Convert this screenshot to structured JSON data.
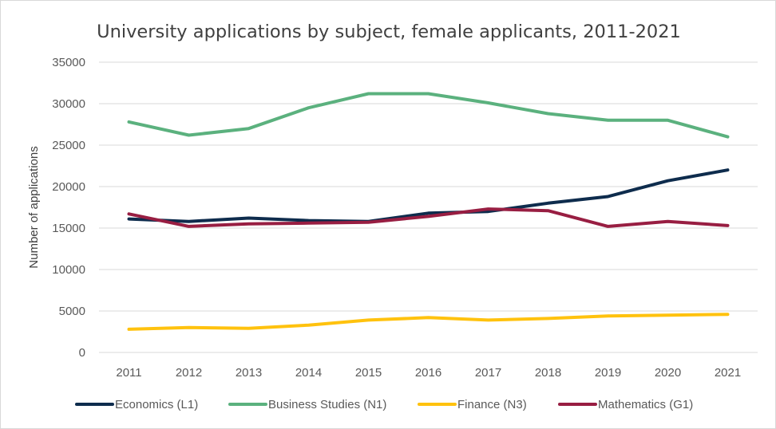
{
  "chart_data": {
    "type": "line",
    "title": "University applications by subject, female applicants, 2011-2021",
    "xlabel": "",
    "ylabel": "Number of applications",
    "ylim": [
      0,
      35000
    ],
    "yticks": [
      "0",
      "5000",
      "10000",
      "15000",
      "20000",
      "25000",
      "30000",
      "35000"
    ],
    "categories": [
      "2011",
      "2012",
      "2013",
      "2014",
      "2015",
      "2016",
      "2017",
      "2018",
      "2019",
      "2020",
      "2021"
    ],
    "grid": true,
    "legend_position": "bottom",
    "series": [
      {
        "name": "Economics (L1)",
        "color": "#0e2c4d",
        "values": [
          16100,
          15800,
          16200,
          15900,
          15800,
          16800,
          17000,
          18000,
          18800,
          20700,
          22000
        ]
      },
      {
        "name": "Business Studies (N1)",
        "color": "#5bb17e",
        "values": [
          27800,
          26200,
          27000,
          29500,
          31200,
          31200,
          30100,
          28800,
          28000,
          28000,
          26000
        ]
      },
      {
        "name": "Finance (N3)",
        "color": "#ffc20e",
        "values": [
          2800,
          3000,
          2900,
          3300,
          3900,
          4200,
          3900,
          4100,
          4400,
          4500,
          4600
        ]
      },
      {
        "name": "Mathematics (G1)",
        "color": "#981e42",
        "values": [
          16700,
          15200,
          15500,
          15600,
          15700,
          16400,
          17300,
          17100,
          15200,
          15800,
          15300
        ]
      }
    ]
  }
}
